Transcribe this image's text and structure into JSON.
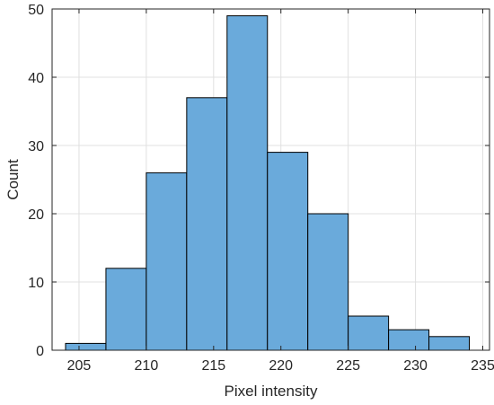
{
  "chart_data": {
    "type": "bar",
    "subtype": "histogram",
    "title": "",
    "xlabel": "Pixel intensity",
    "ylabel": "Count",
    "xlim": [
      203,
      235.5
    ],
    "ylim": [
      0,
      50
    ],
    "xticks": [
      205,
      210,
      215,
      220,
      225,
      230,
      235
    ],
    "yticks": [
      0,
      10,
      20,
      30,
      40,
      50
    ],
    "xtick_labels": [
      "205",
      "210",
      "215",
      "220",
      "225",
      "230",
      "235"
    ],
    "ytick_labels": [
      "0",
      "10",
      "20",
      "30",
      "40",
      "50"
    ],
    "bin_edges": [
      204,
      207,
      210,
      213,
      216,
      219,
      222,
      225,
      228,
      231,
      234
    ],
    "values": [
      1,
      12,
      26,
      37,
      49,
      29,
      20,
      5,
      3,
      2
    ],
    "grid": true,
    "legend": "none",
    "colors": {
      "bar_fill": "#6aaadb",
      "bar_edge": "#000000",
      "grid": "#e0e0e0",
      "axis": "#262626"
    }
  }
}
